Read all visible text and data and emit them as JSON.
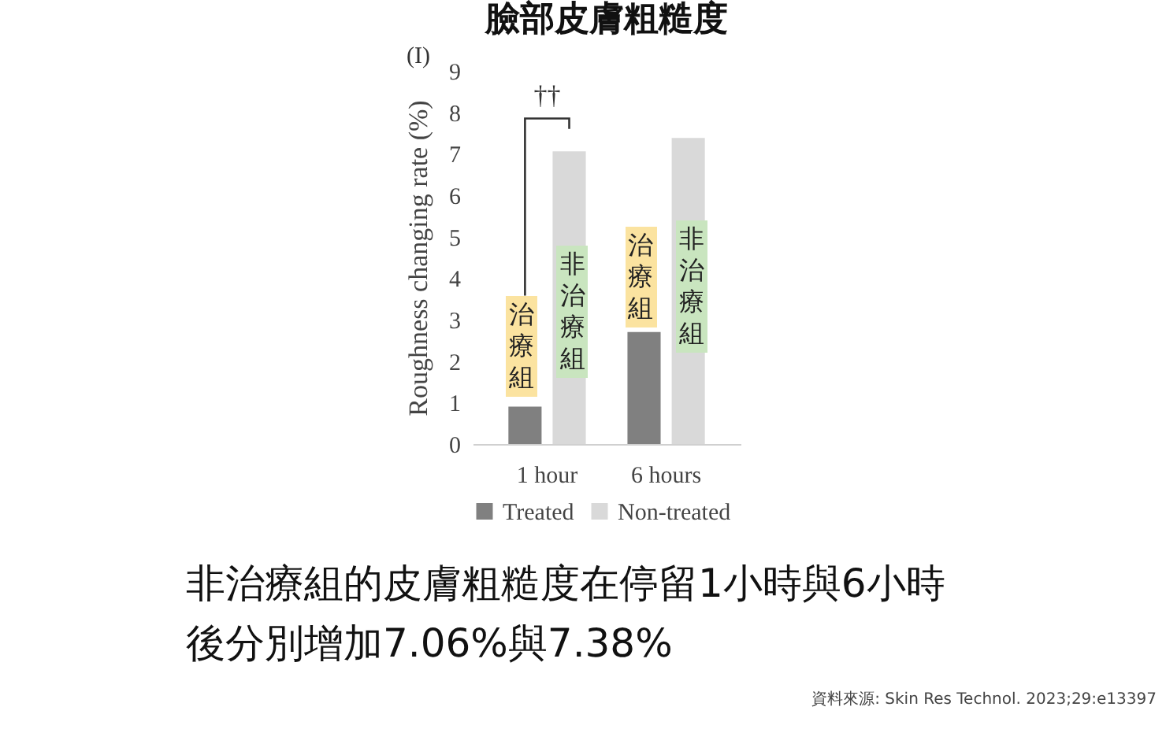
{
  "chart_data": {
    "type": "bar",
    "title": "臉部皮膚粗糙度",
    "ylabel": "Roughness changing rate (%)",
    "categories": [
      "1 hour",
      "6 hours"
    ],
    "series": [
      {
        "name": "Treated",
        "color": "#808080",
        "values": [
          0.9,
          2.7
        ]
      },
      {
        "name": "Non-treated",
        "color": "#d9d9d9",
        "values": [
          7.06,
          7.38
        ]
      }
    ],
    "ylim": [
      0,
      9
    ],
    "yticks": [
      0,
      1,
      2,
      3,
      4,
      5,
      6,
      7,
      8,
      9
    ],
    "grid": false,
    "legend": "bottom",
    "annotations": [
      "(I)",
      "††",
      "非治療組的皮膚粗糙度在停留1小時與6小時後分別增加7.06%與7.38%",
      "資料來源: Skin Res Technol. 2023;29:e13397",
      "治療組",
      "非治療組",
      "治療組",
      "非治療組"
    ]
  }
}
